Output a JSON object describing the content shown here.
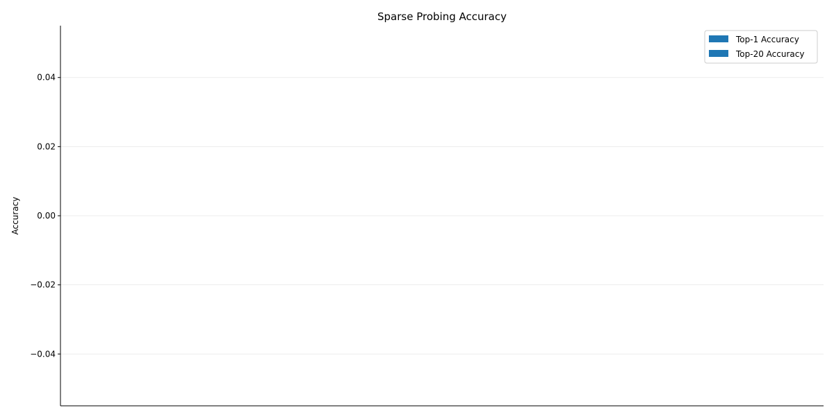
{
  "chart_data": {
    "type": "bar",
    "title": "Sparse Probing Accuracy",
    "xlabel": "",
    "ylabel": "Accuracy",
    "categories": [],
    "series": [
      {
        "name": "Top-1 Accuracy",
        "values": [],
        "color": "#1f77b4"
      },
      {
        "name": "Top-20 Accuracy",
        "values": [],
        "color": "#1f77b4"
      }
    ],
    "ylim": [
      -0.055,
      0.055
    ],
    "yticks": [
      -0.04,
      -0.02,
      0.0,
      0.02,
      0.04
    ],
    "ytick_labels": [
      "−0.04",
      "−0.02",
      "0.00",
      "0.02",
      "0.04"
    ],
    "grid": {
      "y": true,
      "x": false,
      "color": "#e6e6e6"
    },
    "legend_position": "top-right",
    "spines": {
      "top": false,
      "right": false,
      "left": true,
      "bottom": true
    }
  }
}
